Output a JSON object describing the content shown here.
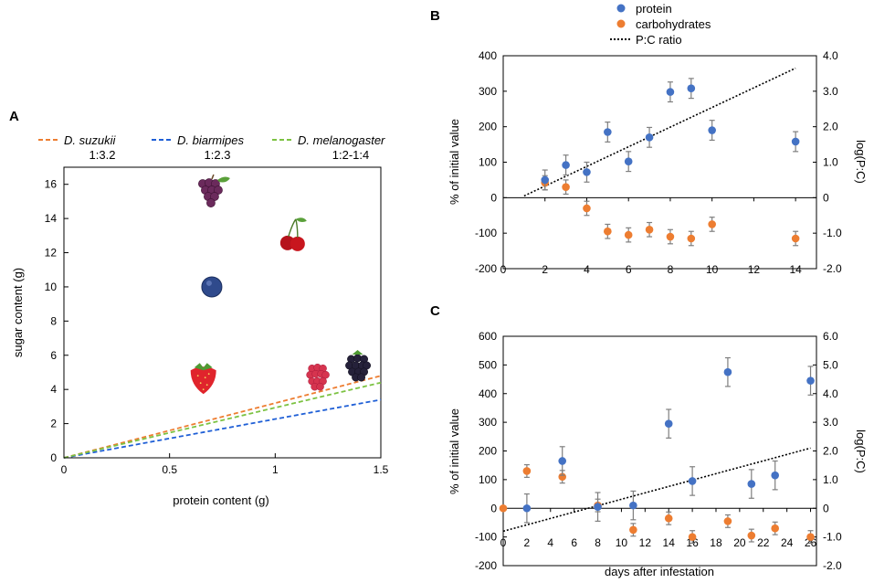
{
  "colors": {
    "protein": "#4472C4",
    "carbohydrates": "#ED7D31",
    "suzukii": "#ED7D31",
    "biarmipes": "#1F5FD6",
    "melanogaster": "#7CC242",
    "errorbar": "#7f7f7f",
    "ratio": "#000000"
  },
  "chart_data": [
    {
      "panel": "A",
      "type": "line",
      "xlabel": "protein content (g)",
      "ylabel": "sugar content (g)",
      "xlim": [
        0,
        1.5
      ],
      "ylim": [
        0,
        17
      ],
      "xticks": [
        "0",
        "0.5",
        "1",
        "1.5"
      ],
      "xtick_values": [
        0,
        0.5,
        1,
        1.5
      ],
      "yticks": [
        0,
        2,
        4,
        6,
        8,
        10,
        12,
        14,
        16
      ],
      "series": [
        {
          "name": "D. suzukii",
          "ratio_label": "1:3.2",
          "color_key": "suzukii",
          "x": [
            0,
            1.5
          ],
          "y": [
            0,
            4.8
          ]
        },
        {
          "name": "D. biarmipes",
          "ratio_label": "1:2.3",
          "color_key": "biarmipes",
          "x": [
            0,
            1.5
          ],
          "y": [
            0,
            3.4
          ]
        },
        {
          "name": "D. melanogaster",
          "ratio_label": "1:2-1:4",
          "color_key": "melanogaster",
          "x": [
            0,
            1.5
          ],
          "y": [
            0,
            4.4
          ]
        }
      ],
      "fruits": [
        {
          "name": "grape",
          "icon": "grape-icon",
          "x": 0.7,
          "y": 15.5
        },
        {
          "name": "cherry",
          "icon": "cherry-icon",
          "x": 1.08,
          "y": 13.0
        },
        {
          "name": "blueberry",
          "icon": "blueberry-icon",
          "x": 0.7,
          "y": 10.0
        },
        {
          "name": "strawberry",
          "icon": "strawberry-icon",
          "x": 0.66,
          "y": 4.8
        },
        {
          "name": "raspberry",
          "icon": "raspberry-icon",
          "x": 1.2,
          "y": 4.8
        },
        {
          "name": "blackberry",
          "icon": "blackberry-icon",
          "x": 1.39,
          "y": 5.4
        }
      ]
    },
    {
      "panel": "B",
      "type": "scatter",
      "legend": [
        "protein",
        "carbohydrates",
        "P:C ratio"
      ],
      "ylabel": "% of initial value",
      "y2label": "log(P:C)",
      "xlim": [
        0,
        15
      ],
      "ylim": [
        -200,
        400
      ],
      "y2lim": [
        -2.0,
        4.0
      ],
      "xticks": [
        0,
        2,
        4,
        6,
        8,
        10,
        12,
        14
      ],
      "yticks": [
        -200,
        -100,
        0,
        100,
        200,
        300,
        400
      ],
      "y2ticks": [
        "-2.0",
        "-1.0",
        "0",
        "1.0",
        "2.0",
        "3.0",
        "4.0"
      ],
      "protein": {
        "x": [
          2,
          3,
          4,
          5,
          6,
          7,
          8,
          9,
          10,
          14
        ],
        "y": [
          50,
          92,
          72,
          185,
          102,
          170,
          298,
          308,
          190,
          158
        ],
        "err": [
          28,
          28,
          28,
          28,
          28,
          28,
          28,
          28,
          28,
          28
        ]
      },
      "carbohydrates": {
        "x": [
          2,
          3,
          4,
          5,
          6,
          7,
          8,
          9,
          10,
          14
        ],
        "y": [
          42,
          30,
          -30,
          -95,
          -105,
          -90,
          -110,
          -115,
          -75,
          -115
        ],
        "err": [
          20,
          20,
          20,
          20,
          20,
          20,
          20,
          20,
          20,
          20
        ]
      },
      "ratio_line": {
        "x": [
          1,
          14
        ],
        "y": [
          0.05,
          3.65
        ]
      }
    },
    {
      "panel": "C",
      "type": "scatter",
      "ylabel": "% of initial value",
      "y2label": "log(P:C)",
      "xlabel": "days after infestation",
      "xlim": [
        0,
        26.5
      ],
      "ylim": [
        -200,
        600
      ],
      "y2lim": [
        -2.0,
        6.0
      ],
      "xticks": [
        0,
        2,
        4,
        6,
        8,
        10,
        12,
        14,
        16,
        18,
        20,
        22,
        24,
        26
      ],
      "yticks": [
        -200,
        -100,
        0,
        100,
        200,
        300,
        400,
        500,
        600
      ],
      "y2ticks": [
        "-2.0",
        "-1.0",
        "0",
        "1.0",
        "2.0",
        "3.0",
        "4.0",
        "5.0",
        "6.0"
      ],
      "protein": {
        "x": [
          2,
          5,
          8,
          11,
          14,
          16,
          19,
          21,
          23,
          26
        ],
        "y": [
          0,
          165,
          5,
          10,
          295,
          95,
          475,
          85,
          115,
          445
        ],
        "err": [
          50,
          50,
          50,
          50,
          50,
          50,
          50,
          50,
          50,
          50
        ]
      },
      "carbohydrates": {
        "x": [
          0,
          2,
          5,
          8,
          11,
          14,
          16,
          19,
          21,
          23,
          26
        ],
        "y": [
          0,
          130,
          110,
          10,
          -75,
          -35,
          -100,
          -45,
          -95,
          -70,
          -100
        ],
        "err": [
          0,
          22,
          22,
          22,
          22,
          22,
          22,
          22,
          22,
          22,
          22
        ]
      },
      "ratio_line": {
        "x": [
          0,
          26
        ],
        "y": [
          -0.8,
          2.1
        ]
      }
    }
  ],
  "labels": {
    "panel_a": "A",
    "panel_b": "B",
    "panel_c": "C"
  }
}
